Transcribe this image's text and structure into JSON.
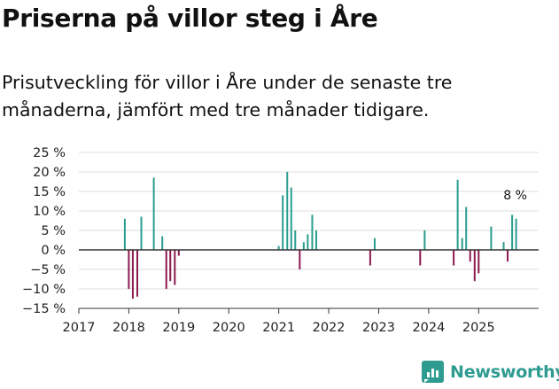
{
  "header": {
    "title": "Priserna på villor steg i Åre",
    "subtitle": "Prisutveckling för villor i Åre under de senaste tre månaderna, jämfört med tre månader tidigare."
  },
  "brand": {
    "name": "Newsworthy"
  },
  "colors": {
    "positive": "#2a9d8f",
    "negative": "#8b1a4f",
    "zero_line": "#333333",
    "grid": "#dddddd",
    "brand": "#2f9c91"
  },
  "chart_data": {
    "type": "bar",
    "title": "Priserna på villor steg i Åre",
    "subtitle": "Prisutveckling för villor i Åre under de senaste tre månaderna, jämfört med tre månader tidigare.",
    "xlabel": "",
    "ylabel": "",
    "ylim": [
      -15,
      25
    ],
    "xlim": [
      2017.0,
      2026.2
    ],
    "y_ticks": [
      25,
      20,
      15,
      10,
      5,
      0,
      -5,
      -10,
      -15
    ],
    "y_tick_labels": [
      "25 %",
      "20 %",
      "15 %",
      "10 %",
      "5 %",
      "0 %",
      "−5 %",
      "−10 %",
      "−15 %"
    ],
    "x_ticks": [
      2017,
      2018,
      2019,
      2020,
      2021,
      2022,
      2023,
      2024,
      2025
    ],
    "x_tick_labels": [
      "2017",
      "2018",
      "2019",
      "2020",
      "2021",
      "2022",
      "2023",
      "2024",
      "2025"
    ],
    "grid": true,
    "annotation": {
      "label": "8 %",
      "x": 2025.75,
      "y": 8
    },
    "series": [
      {
        "name": "Prisutveckling",
        "points": [
          {
            "x": 2017.92,
            "y": 8
          },
          {
            "x": 2018.0,
            "y": -10
          },
          {
            "x": 2018.08,
            "y": -12.5
          },
          {
            "x": 2018.17,
            "y": -12
          },
          {
            "x": 2018.25,
            "y": 8.5
          },
          {
            "x": 2018.5,
            "y": 18.5
          },
          {
            "x": 2018.67,
            "y": 3.5
          },
          {
            "x": 2018.75,
            "y": -10
          },
          {
            "x": 2018.83,
            "y": -8
          },
          {
            "x": 2018.92,
            "y": -9
          },
          {
            "x": 2019.0,
            "y": -1.5
          },
          {
            "x": 2021.0,
            "y": 1
          },
          {
            "x": 2021.08,
            "y": 14
          },
          {
            "x": 2021.17,
            "y": 20
          },
          {
            "x": 2021.25,
            "y": 16
          },
          {
            "x": 2021.33,
            "y": 5
          },
          {
            "x": 2021.42,
            "y": -5
          },
          {
            "x": 2021.5,
            "y": 2
          },
          {
            "x": 2021.58,
            "y": 4
          },
          {
            "x": 2021.67,
            "y": 9
          },
          {
            "x": 2021.75,
            "y": 5
          },
          {
            "x": 2022.83,
            "y": -4
          },
          {
            "x": 2022.92,
            "y": 3
          },
          {
            "x": 2023.83,
            "y": -4
          },
          {
            "x": 2023.92,
            "y": 5
          },
          {
            "x": 2024.5,
            "y": -4
          },
          {
            "x": 2024.58,
            "y": 18
          },
          {
            "x": 2024.67,
            "y": 3
          },
          {
            "x": 2024.75,
            "y": 11
          },
          {
            "x": 2024.83,
            "y": -3
          },
          {
            "x": 2024.92,
            "y": -8
          },
          {
            "x": 2025.0,
            "y": -6
          },
          {
            "x": 2025.25,
            "y": 6
          },
          {
            "x": 2025.5,
            "y": 2
          },
          {
            "x": 2025.58,
            "y": -3
          },
          {
            "x": 2025.67,
            "y": 9
          },
          {
            "x": 2025.75,
            "y": 8
          }
        ]
      }
    ]
  }
}
